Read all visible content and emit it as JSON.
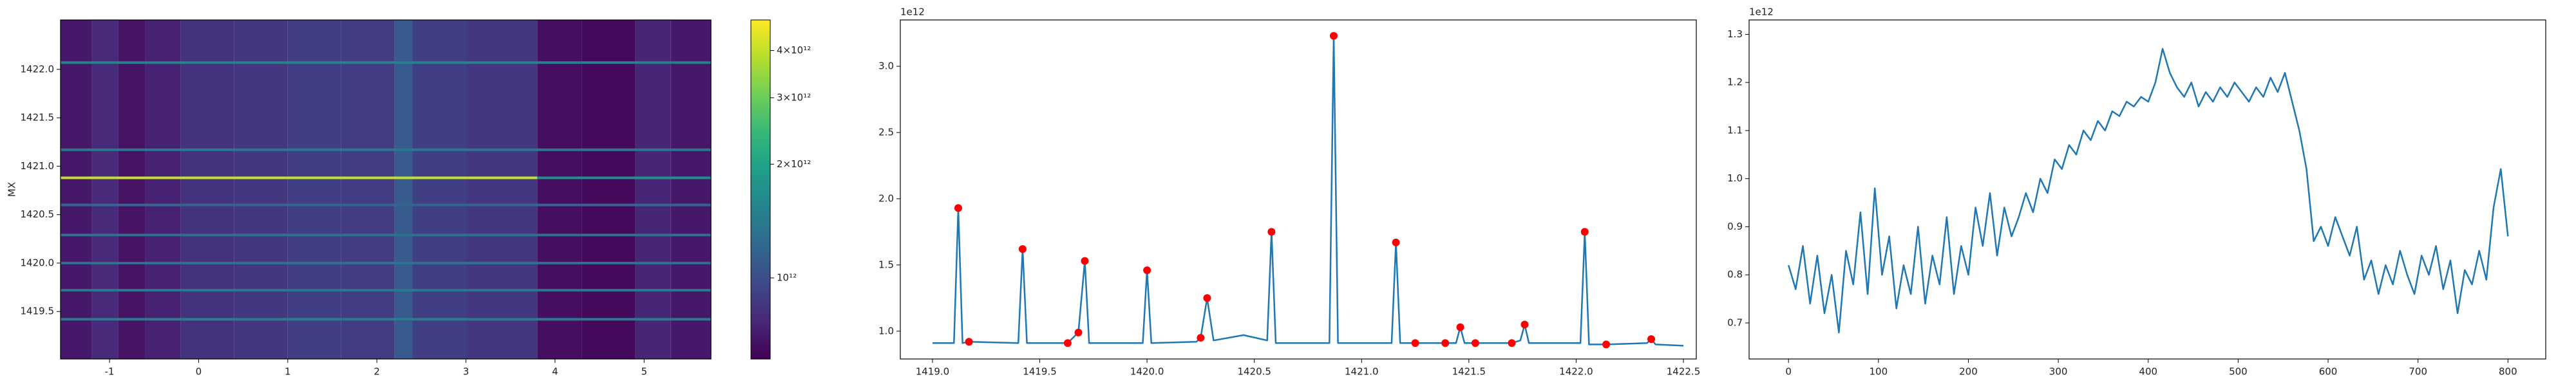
{
  "chart_data": [
    {
      "type": "heatmap",
      "ylabel": "MX",
      "cmap": "viridis",
      "xlim": [
        -1.55,
        5.75
      ],
      "ylim": [
        1419.01,
        1422.51
      ],
      "xticks": [
        -1,
        0,
        1,
        2,
        3,
        4,
        5
      ],
      "yticks": [
        1419.5,
        {
          "value": 1420.0,
          "label": "1420.0"
        },
        1420.5,
        {
          "value": 1421.0,
          "label": "1421.0"
        },
        1421.5,
        {
          "value": 1422.0,
          "label": "1422.0"
        }
      ],
      "x_bands": [
        {
          "x": [
            -1.55,
            -1.2
          ],
          "value": 700000000000
        },
        {
          "x": [
            -1.2,
            -0.9
          ],
          "value": 780000000000
        },
        {
          "x": [
            -0.9,
            -0.6
          ],
          "value": 680000000000
        },
        {
          "x": [
            -0.6,
            -0.2
          ],
          "value": 740000000000
        },
        {
          "x": [
            -0.2,
            0.4
          ],
          "value": 820000000000
        },
        {
          "x": [
            0.4,
            1.0
          ],
          "value": 860000000000
        },
        {
          "x": [
            1.0,
            1.6
          ],
          "value": 900000000000
        },
        {
          "x": [
            1.6,
            2.2
          ],
          "value": 880000000000
        },
        {
          "x": [
            2.2,
            2.4
          ],
          "value": 1100000000000
        },
        {
          "x": [
            2.4,
            3.0
          ],
          "value": 900000000000
        },
        {
          "x": [
            3.0,
            3.8
          ],
          "value": 860000000000
        },
        {
          "x": [
            3.8,
            4.3
          ],
          "value": 660000000000
        },
        {
          "x": [
            4.3,
            4.9
          ],
          "value": 640000000000
        },
        {
          "x": [
            4.9,
            5.3
          ],
          "value": 760000000000
        },
        {
          "x": [
            5.3,
            5.75
          ],
          "value": 700000000000
        }
      ],
      "lines": [
        {
          "y": 1422.07,
          "x": [
            -1.55,
            5.75
          ],
          "value": 1500000000000
        },
        {
          "y": 1421.17,
          "x": [
            -1.55,
            5.75
          ],
          "value": 1400000000000
        },
        {
          "y": 1420.88,
          "x": [
            -1.55,
            3.8
          ],
          "value": 4000000000000
        },
        {
          "y": 1420.88,
          "x": [
            3.8,
            5.75
          ],
          "value": 1700000000000
        },
        {
          "y": 1420.6,
          "x": [
            -1.55,
            5.75
          ],
          "value": 1200000000000
        },
        {
          "y": 1420.29,
          "x": [
            -1.55,
            5.75
          ],
          "value": 1300000000000
        },
        {
          "y": 1420.0,
          "x": [
            -1.55,
            5.75
          ],
          "value": 1300000000000
        },
        {
          "y": 1419.72,
          "x": [
            -1.55,
            5.75
          ],
          "value": 1400000000000
        },
        {
          "y": 1419.42,
          "x": [
            -1.55,
            5.75
          ],
          "value": 1450000000000
        }
      ],
      "colorbar": {
        "log": true,
        "lim": [
          610000000000,
          4820000000000
        ],
        "ticks": [
          {
            "value": 1000000000000,
            "label": "10¹²"
          },
          {
            "value": 2000000000000,
            "label": "2×10¹²"
          },
          {
            "value": 3000000000000,
            "label": "3×10¹²"
          },
          {
            "value": 4000000000000,
            "label": "4×10¹²"
          }
        ]
      }
    },
    {
      "type": "line",
      "color": "#1f77b4",
      "y_offset_label": "1e12",
      "xlim": [
        1418.85,
        1422.56
      ],
      "ylim": [
        0.79,
        3.35
      ],
      "xticks": [
        {
          "value": 1419.0,
          "label": "1419.0"
        },
        1419.5,
        {
          "value": 1420.0,
          "label": "1420.0"
        },
        1420.5,
        {
          "value": 1421.0,
          "label": "1421.0"
        },
        1421.5,
        {
          "value": 1422.0,
          "label": "1422.0"
        },
        1422.5
      ],
      "yticks": [
        {
          "value": 1.0,
          "label": "1.0"
        },
        1.5,
        {
          "value": 2.0,
          "label": "2.0"
        },
        2.5,
        {
          "value": 3.0,
          "label": "3.0"
        }
      ],
      "x": [
        1419.0,
        1419.1,
        1419.12,
        1419.14,
        1419.17,
        1419.4,
        1419.42,
        1419.44,
        1419.63,
        1419.68,
        1419.71,
        1419.73,
        1419.98,
        1420.0,
        1420.02,
        1420.23,
        1420.25,
        1420.28,
        1420.31,
        1420.45,
        1420.56,
        1420.58,
        1420.6,
        1420.85,
        1420.87,
        1420.89,
        1421.14,
        1421.16,
        1421.18,
        1421.25,
        1421.44,
        1421.46,
        1421.48,
        1421.7,
        1421.74,
        1421.76,
        1421.78,
        1422.02,
        1422.04,
        1422.06,
        1422.14,
        1422.33,
        1422.35,
        1422.37,
        1422.5
      ],
      "values": [
        0.91,
        0.91,
        1.93,
        0.91,
        0.92,
        0.91,
        1.62,
        0.91,
        0.91,
        0.99,
        1.53,
        0.91,
        0.91,
        1.46,
        0.91,
        0.92,
        0.95,
        1.25,
        0.93,
        0.97,
        0.93,
        1.75,
        0.91,
        0.91,
        3.23,
        0.91,
        0.91,
        1.67,
        0.91,
        0.91,
        0.91,
        1.03,
        0.91,
        0.91,
        0.93,
        1.05,
        0.91,
        0.91,
        1.75,
        0.9,
        0.9,
        0.91,
        0.94,
        0.9,
        0.89
      ],
      "peaks": {
        "color": "red",
        "x": [
          1419.12,
          1419.17,
          1419.42,
          1419.63,
          1419.68,
          1419.71,
          1420.0,
          1420.25,
          1420.28,
          1420.58,
          1420.87,
          1421.16,
          1421.25,
          1421.39,
          1421.46,
          1421.53,
          1421.7,
          1421.76,
          1422.04,
          1422.14,
          1422.35
        ],
        "values": [
          1.93,
          0.92,
          1.62,
          0.91,
          0.99,
          1.53,
          1.46,
          0.95,
          1.25,
          1.75,
          3.23,
          1.67,
          0.91,
          0.91,
          1.03,
          0.91,
          0.91,
          1.05,
          1.75,
          0.9,
          0.94
        ]
      }
    },
    {
      "type": "line",
      "color": "#1f77b4",
      "y_offset_label": "1e12",
      "xlim": [
        -43.8,
        842
      ],
      "ylim": [
        0.625,
        1.33
      ],
      "xticks": [
        0,
        100,
        200,
        300,
        400,
        500,
        600,
        700,
        800
      ],
      "yticks": [
        0.7,
        0.8,
        0.9,
        {
          "value": 1.0,
          "label": "1.0"
        },
        1.1,
        1.2,
        1.3
      ],
      "x": [
        0,
        8,
        16,
        24,
        32,
        40,
        48,
        56,
        64,
        72,
        80,
        88,
        96,
        104,
        112,
        120,
        128,
        136,
        144,
        152,
        160,
        168,
        176,
        184,
        192,
        200,
        208,
        216,
        224,
        232,
        240,
        248,
        256,
        264,
        272,
        280,
        288,
        296,
        304,
        312,
        320,
        328,
        336,
        344,
        352,
        360,
        368,
        376,
        384,
        392,
        400,
        408,
        416,
        424,
        432,
        440,
        448,
        456,
        464,
        472,
        480,
        488,
        496,
        504,
        512,
        520,
        528,
        536,
        544,
        552,
        560,
        568,
        576,
        584,
        592,
        600,
        608,
        616,
        624,
        632,
        640,
        648,
        656,
        664,
        672,
        680,
        688,
        696,
        704,
        712,
        720,
        728,
        736,
        744,
        752,
        760,
        768,
        776,
        784,
        792,
        800
      ],
      "values": [
        0.82,
        0.77,
        0.86,
        0.74,
        0.84,
        0.72,
        0.8,
        0.68,
        0.85,
        0.78,
        0.93,
        0.76,
        0.98,
        0.8,
        0.88,
        0.73,
        0.82,
        0.76,
        0.9,
        0.74,
        0.84,
        0.78,
        0.92,
        0.76,
        0.86,
        0.8,
        0.94,
        0.86,
        0.97,
        0.84,
        0.94,
        0.88,
        0.92,
        0.97,
        0.93,
        1.0,
        0.97,
        1.04,
        1.02,
        1.07,
        1.05,
        1.1,
        1.08,
        1.12,
        1.1,
        1.14,
        1.13,
        1.16,
        1.15,
        1.17,
        1.16,
        1.2,
        1.27,
        1.22,
        1.19,
        1.17,
        1.2,
        1.15,
        1.18,
        1.16,
        1.19,
        1.17,
        1.2,
        1.18,
        1.16,
        1.19,
        1.17,
        1.21,
        1.18,
        1.22,
        1.16,
        1.1,
        1.02,
        0.87,
        0.9,
        0.86,
        0.92,
        0.88,
        0.84,
        0.9,
        0.79,
        0.83,
        0.76,
        0.82,
        0.78,
        0.85,
        0.8,
        0.76,
        0.84,
        0.8,
        0.86,
        0.77,
        0.83,
        0.72,
        0.81,
        0.78,
        0.85,
        0.79,
        0.94,
        1.02,
        0.88
      ]
    }
  ]
}
